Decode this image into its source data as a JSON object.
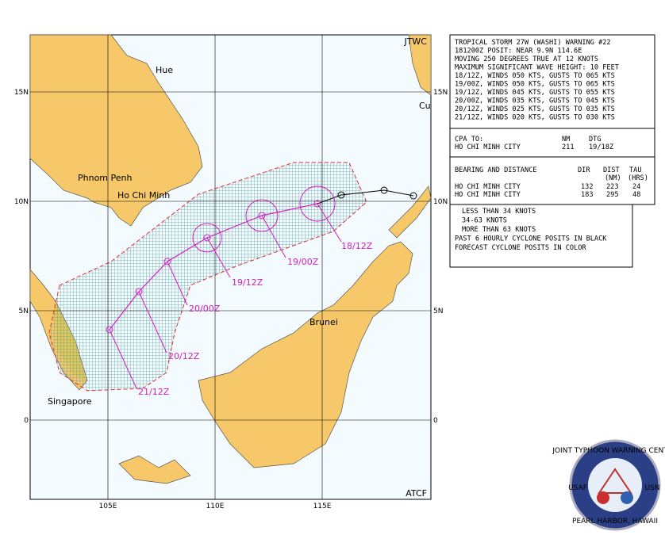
{
  "map": {
    "top_right_label": "JTWC",
    "bottom_right_label": "ATCF",
    "lat_labels": [
      "15N",
      "10N",
      "5N",
      "0"
    ],
    "lon_labels": [
      "105E",
      "110E",
      "115E"
    ],
    "places": [
      "Hue",
      "Phnom Penh",
      "Ho Chi Minh",
      "Brunei",
      "Singapore",
      "Cu"
    ],
    "forecast_labels": [
      "18/12Z",
      "19/00Z",
      "19/12Z",
      "20/00Z",
      "20/12Z",
      "21/12Z"
    ]
  },
  "warning": {
    "lines": [
      "TROPICAL STORM 27W (WASHI) WARNING #22",
      "181200Z POSIT: NEAR 9.9N 114.6E",
      "MOVING 250 DEGREES TRUE AT 12 KNOTS",
      "MAXIMUM SIGNIFICANT WAVE HEIGHT: 10 FEET",
      "18/12Z, WINDS 050 KTS, GUSTS TO 065 KTS",
      "19/00Z, WINDS 050 KTS, GUSTS TO 065 KTS",
      "19/12Z, WINDS 045 KTS, GUSTS TO 055 KTS",
      "20/00Z, WINDS 035 KTS, GUSTS TO 045 KTS",
      "20/12Z, WINDS 025 KTS, GUSTS TO 035 KTS",
      "21/12Z, WINDS 020 KTS, GUSTS TO 030 KTS"
    ],
    "cpa": {
      "header": [
        "CPA TO:",
        "NM",
        "DTG"
      ],
      "rows": [
        [
          "HO CHI MINH CITY",
          "211",
          "19/18Z"
        ]
      ]
    },
    "bearing": {
      "header": [
        "BEARING AND DISTANCE",
        "DIR",
        "DIST",
        "TAU"
      ],
      "subheader": [
        "(NM)",
        "(HRS)"
      ],
      "rows": [
        [
          "HO CHI MINH CITY",
          "132",
          "223",
          "24"
        ],
        [
          "HO CHI MINH CITY",
          "183",
          "295",
          "48"
        ]
      ]
    }
  },
  "legend": {
    "lines": [
      "LESS THAN 34 KNOTS",
      "34-63 KNOTS",
      "MORE THAN 63 KNOTS",
      "PAST 6 HOURLY CYCLONE POSITS IN BLACK",
      "FORECAST CYCLONE POSITS IN COLOR"
    ]
  },
  "logo": {
    "top": "JOINT TYPHOON WARNING CENTER",
    "left": "USAF",
    "right": "USN",
    "bottom": "PEARL HARBOR, HAWAII"
  }
}
